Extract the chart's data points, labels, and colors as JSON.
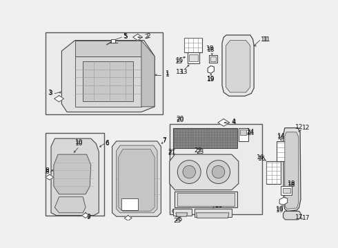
{
  "bg": "#f0f0f0",
  "white": "#ffffff",
  "lc": "#444444",
  "box_bg": "#e8e8e8",
  "part_fill": "#f8f8f8",
  "dark_fill": "#888888",
  "label_fs": 6.0,
  "arrow_lw": 0.6
}
